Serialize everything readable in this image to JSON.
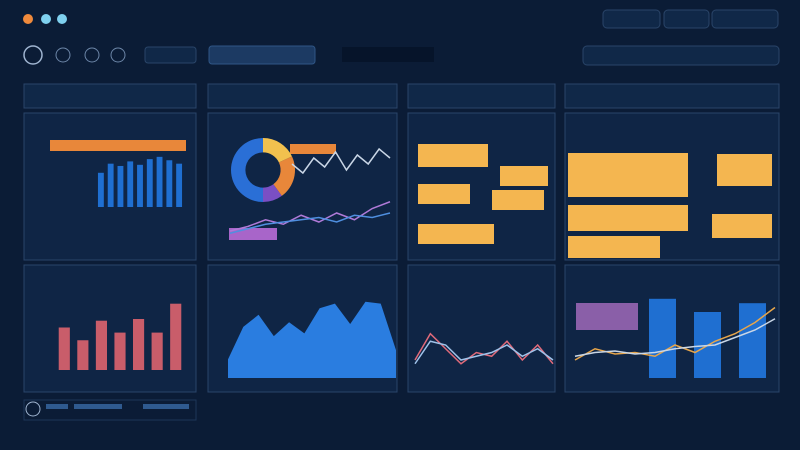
{
  "chart_data": [
    {
      "type": "bar",
      "color": "#1f6fd1",
      "values": [
        30,
        38,
        36,
        40,
        37,
        42,
        44,
        41,
        38
      ],
      "ylim": [
        0,
        50
      ]
    },
    {
      "type": "pie",
      "colors": [
        "#f2c14e",
        "#e8873a",
        "#7a4fc4",
        "#2a6fd6"
      ],
      "values": [
        18,
        22,
        10,
        50
      ]
    },
    {
      "type": "line",
      "color": "#c9d6e6",
      "values": [
        60,
        45,
        70,
        55,
        80,
        50,
        75,
        60,
        85,
        70
      ],
      "ylim": [
        0,
        100
      ]
    },
    {
      "type": "line",
      "ylim": [
        0,
        100
      ],
      "series": [
        {
          "color": "#b07ad8",
          "values": [
            20,
            30,
            45,
            35,
            55,
            40,
            60,
            45,
            70,
            85
          ]
        },
        {
          "color": "#4f8fe0",
          "values": [
            15,
            25,
            35,
            40,
            45,
            50,
            40,
            55,
            50,
            60
          ]
        }
      ]
    },
    {
      "type": "bar",
      "color": "#c95d6a",
      "values": [
        50,
        35,
        58,
        44,
        60,
        44,
        78
      ],
      "ylim": [
        0,
        100
      ]
    },
    {
      "type": "area",
      "color": "#2a7de0",
      "values": [
        20,
        55,
        68,
        45,
        60,
        48,
        75,
        80,
        58,
        82,
        80,
        30
      ],
      "ylim": [
        0,
        100
      ]
    },
    {
      "type": "line",
      "ylim": [
        0,
        100
      ],
      "series": [
        {
          "color": "#e06a7a",
          "values": [
            20,
            55,
            35,
            15,
            30,
            25,
            45,
            20,
            40,
            15
          ]
        },
        {
          "color": "#9fc3ea",
          "values": [
            15,
            45,
            40,
            20,
            25,
            30,
            40,
            25,
            35,
            20
          ]
        }
      ]
    },
    {
      "type": "bar",
      "color": "#1f6fd1",
      "values": [
        90,
        75,
        85
      ],
      "ylim": [
        0,
        100
      ]
    },
    {
      "type": "line",
      "ylim": [
        0,
        100
      ],
      "series": [
        {
          "color": "#e8a64a",
          "values": [
            20,
            35,
            28,
            30,
            25,
            40,
            30,
            45,
            55,
            70,
            90
          ]
        },
        {
          "color": "#c9d6e6",
          "values": [
            25,
            30,
            32,
            28,
            30,
            35,
            38,
            40,
            50,
            60,
            75
          ]
        }
      ]
    }
  ]
}
